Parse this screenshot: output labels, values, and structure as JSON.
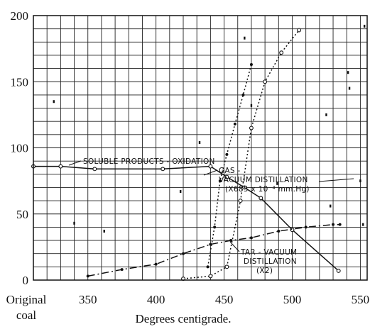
{
  "chart_data": {
    "type": "line",
    "xlabel": "Degrees centigrade.",
    "ylabel": "",
    "xlim": [
      310,
      555
    ],
    "ylim": [
      0,
      200
    ],
    "grid": true,
    "x_ticks": [
      {
        "value": 350,
        "label": "350"
      },
      {
        "value": 400,
        "label": "400"
      },
      {
        "value": 450,
        "label": "450"
      },
      {
        "value": 500,
        "label": "500"
      },
      {
        "value": 550,
        "label": "550"
      }
    ],
    "original_tick": {
      "line1": "Original",
      "line2": "coal"
    },
    "y_ticks": [
      0,
      50,
      100,
      150,
      200
    ],
    "series": [
      {
        "label_lines": [
          "SOLUBLE PRODUCTS - OXIDATION"
        ],
        "style": "solid",
        "marker": "open",
        "points": [
          [
            310,
            86
          ],
          [
            330,
            86
          ],
          [
            355,
            84
          ],
          [
            405,
            84
          ],
          [
            440,
            86
          ],
          [
            452,
            78
          ],
          [
            465,
            70
          ],
          [
            477,
            62
          ],
          [
            500,
            38
          ],
          [
            534,
            7
          ]
        ]
      },
      {
        "label_lines": [
          "GAS -",
          "VACUUM DISTILLATION",
          "(X685 x 10⁻⁴ mm.Hg)"
        ],
        "style": "dotted",
        "marker": "open",
        "points": [
          [
            420,
            1
          ],
          [
            440,
            3
          ],
          [
            452,
            10
          ],
          [
            462,
            60
          ],
          [
            470,
            115
          ],
          [
            480,
            150
          ],
          [
            492,
            172
          ],
          [
            505,
            189
          ]
        ]
      },
      {
        "label_lines": [
          "TAR - VACUUM",
          "DISTILLATION",
          "(X2)"
        ],
        "style": "dash-dot",
        "marker": "solid",
        "points": [
          [
            350,
            3
          ],
          [
            375,
            8
          ],
          [
            400,
            12
          ],
          [
            420,
            20
          ],
          [
            440,
            27
          ],
          [
            455,
            30
          ],
          [
            470,
            32
          ],
          [
            490,
            37
          ],
          [
            510,
            40
          ],
          [
            530,
            42
          ],
          [
            535,
            42
          ]
        ]
      },
      {
        "label_lines": [],
        "style": "dotted",
        "marker": "solid",
        "points": [
          [
            438,
            10
          ],
          [
            443,
            40
          ],
          [
            447,
            75
          ],
          [
            452,
            95
          ],
          [
            458,
            118
          ],
          [
            464,
            140
          ],
          [
            470,
            163
          ]
        ]
      }
    ],
    "scatter_points": [
      [
        325,
        135
      ],
      [
        340,
        43
      ],
      [
        362,
        37
      ],
      [
        418,
        67
      ],
      [
        432,
        104
      ],
      [
        465,
        183
      ],
      [
        470,
        132
      ],
      [
        489,
        73
      ],
      [
        525,
        125
      ],
      [
        528,
        56
      ],
      [
        541,
        157
      ],
      [
        542,
        145
      ],
      [
        550,
        75
      ],
      [
        553,
        192
      ],
      [
        552,
        42
      ]
    ]
  }
}
